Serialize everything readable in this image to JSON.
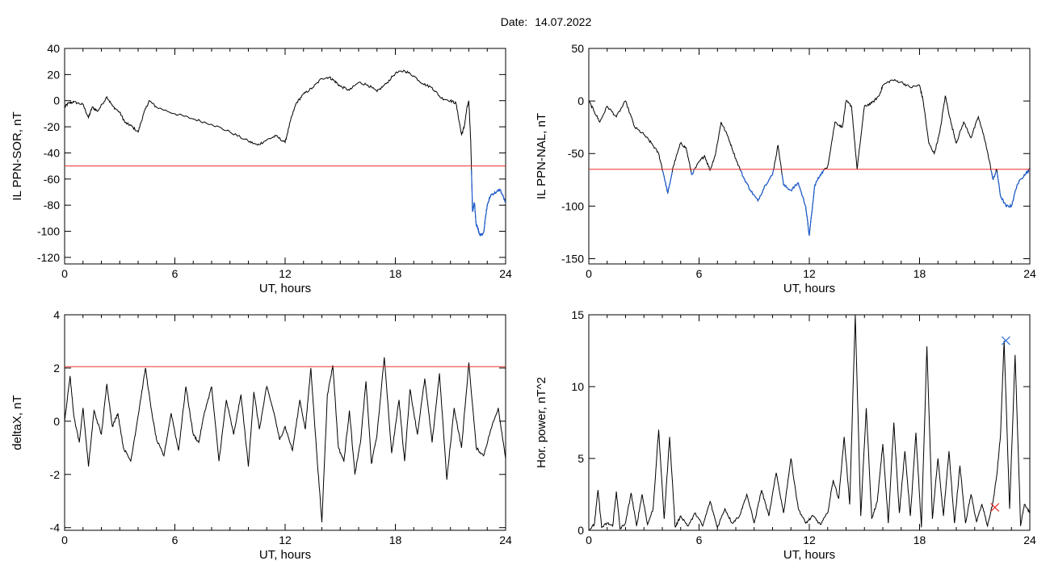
{
  "header": {
    "date_label": "Date:",
    "date_value": "14.07.2022"
  },
  "colors": {
    "trace": "#000000",
    "threshold": "#e8302a",
    "below_threshold": "#1f5fd0",
    "marker_max": "#2f6fd8",
    "marker_min": "#e8302a"
  },
  "chart_data": [
    {
      "type": "line",
      "xlabel": "UT, hours",
      "ylabel": "IL PPN-SOR, nT",
      "xlim": [
        0,
        24
      ],
      "ylim": [
        -125,
        40
      ],
      "xticks": [
        0,
        6,
        12,
        18,
        24
      ],
      "yticks": [
        40,
        20,
        0,
        -20,
        -40,
        -60,
        -80,
        -100,
        -120
      ],
      "threshold": -50,
      "series": [
        {
          "x": [
            0,
            0.2,
            0.5,
            1,
            1.3,
            1.5,
            1.8,
            2.3,
            2.6,
            3,
            3.3,
            3.6,
            4,
            4.3,
            4.6,
            5,
            6,
            7,
            8,
            9,
            10,
            10.5,
            11,
            11.5,
            12,
            12.3,
            12.6,
            13,
            13.5,
            14,
            14.4,
            14.7,
            15,
            15.5,
            16,
            16.5,
            17,
            17.5,
            18,
            18.5,
            19,
            19.5,
            20,
            20.5,
            21,
            21.3,
            21.6,
            21.75,
            21.9,
            22,
            22.1,
            22.2,
            22.3,
            22.4,
            22.5,
            22.6,
            22.8,
            23,
            23.2,
            23.5,
            23.7,
            24
          ],
          "y": [
            -5,
            -2,
            -1,
            -3,
            -13,
            -5,
            -8,
            3,
            -4,
            -9,
            -17,
            -19,
            -24,
            -10,
            0,
            -5,
            -10,
            -14,
            -18,
            -24,
            -31,
            -34,
            -30,
            -27,
            -32,
            -15,
            -2,
            5,
            10,
            17,
            18,
            15,
            11,
            8,
            14,
            12,
            7,
            13,
            21,
            23,
            19,
            13,
            10,
            2,
            0,
            -2,
            -26,
            -20,
            -5,
            -1,
            -30,
            -85,
            -78,
            -95,
            -98,
            -103,
            -101,
            -80,
            -72,
            -70,
            -68,
            -78
          ]
        }
      ]
    },
    {
      "type": "line",
      "xlabel": "UT, hours",
      "ylabel": "IL PPN-NAL, nT",
      "xlim": [
        0,
        24
      ],
      "ylim": [
        -155,
        50
      ],
      "xticks": [
        0,
        6,
        12,
        18,
        24
      ],
      "yticks": [
        50,
        0,
        -50,
        -100,
        -150
      ],
      "threshold": -65,
      "series": [
        {
          "x": [
            0,
            0.3,
            0.6,
            1,
            1.5,
            2,
            2.5,
            3,
            3.4,
            3.8,
            4.1,
            4.3,
            4.6,
            5,
            5.3,
            5.6,
            6,
            6.3,
            6.6,
            6.9,
            7.2,
            7.6,
            8,
            8.4,
            8.8,
            9.2,
            9.6,
            10,
            10.3,
            10.6,
            11,
            11.4,
            11.8,
            12,
            12.3,
            12.6,
            13,
            13.4,
            13.8,
            14,
            14.3,
            14.6,
            15,
            15.4,
            15.8,
            16,
            16.5,
            17,
            17.5,
            18,
            18.2,
            18.5,
            18.8,
            19.1,
            19.4,
            19.7,
            20,
            20.4,
            20.8,
            21.2,
            21.6,
            22,
            22.2,
            22.4,
            22.7,
            23,
            23.3,
            23.7,
            24
          ],
          "y": [
            0,
            -10,
            -20,
            -5,
            -15,
            0,
            -25,
            -32,
            -40,
            -50,
            -72,
            -88,
            -62,
            -40,
            -45,
            -70,
            -58,
            -52,
            -66,
            -50,
            -20,
            -35,
            -55,
            -72,
            -85,
            -95,
            -80,
            -70,
            -42,
            -80,
            -85,
            -78,
            -100,
            -128,
            -80,
            -70,
            -62,
            -20,
            -25,
            0,
            -5,
            -65,
            -5,
            -2,
            5,
            15,
            20,
            18,
            13,
            15,
            0,
            -40,
            -50,
            -30,
            5,
            -20,
            -40,
            -20,
            -35,
            -15,
            -40,
            -75,
            -65,
            -90,
            -100,
            -100,
            -80,
            -70,
            -65
          ]
        }
      ]
    },
    {
      "type": "line",
      "xlabel": "UT, hours",
      "ylabel": "deltaX, nT",
      "xlim": [
        0,
        24
      ],
      "ylim": [
        -4.1,
        4.0
      ],
      "xticks": [
        0,
        6,
        12,
        18,
        24
      ],
      "yticks": [
        4,
        2,
        0,
        -2,
        -4
      ],
      "threshold": 2.05,
      "series": [
        {
          "x": [
            0,
            0.3,
            0.5,
            0.8,
            1,
            1.3,
            1.6,
            2,
            2.3,
            2.6,
            2.9,
            3.2,
            3.6,
            4,
            4.4,
            4.7,
            5,
            5.4,
            5.8,
            6.2,
            6.6,
            7,
            7.3,
            7.6,
            8,
            8.4,
            8.8,
            9.2,
            9.6,
            10,
            10.3,
            10.6,
            11,
            11.4,
            11.7,
            12,
            12.4,
            12.8,
            13.1,
            13.4,
            13.7,
            14,
            14.3,
            14.6,
            14.9,
            15.2,
            15.5,
            15.8,
            16.1,
            16.4,
            16.7,
            17,
            17.4,
            17.8,
            18.2,
            18.5,
            18.8,
            19.2,
            19.6,
            20,
            20.4,
            20.8,
            21.2,
            21.6,
            22,
            22.4,
            22.8,
            23.2,
            23.6,
            24
          ],
          "y": [
            0,
            1.7,
            0.2,
            -0.8,
            0.5,
            -1.7,
            0.4,
            -0.5,
            1.4,
            -0.2,
            0.3,
            -1,
            -1.5,
            0.2,
            2,
            0.5,
            -0.7,
            -1.3,
            0.3,
            -1.1,
            1.3,
            -0.5,
            -0.8,
            0.3,
            1.3,
            -1.5,
            0.8,
            -0.5,
            1,
            -1.7,
            1.1,
            -0.3,
            1.3,
            0.3,
            -0.7,
            -0.2,
            -1.1,
            0.8,
            -0.3,
            2,
            -1,
            -3.8,
            1,
            2.1,
            -1,
            -1.5,
            0.4,
            -2,
            -0.8,
            1.5,
            -1.6,
            -0.5,
            2.4,
            -1.2,
            0.8,
            -1.5,
            1.2,
            -0.5,
            1.6,
            -0.8,
            1.8,
            -2.2,
            0.5,
            -1,
            2.2,
            -1,
            -1.3,
            -0.3,
            0.5,
            -1.4
          ]
        }
      ]
    },
    {
      "type": "line",
      "xlabel": "UT, hours",
      "ylabel": "Hor. power, nT^2",
      "xlim": [
        0,
        24
      ],
      "ylim": [
        0,
        15
      ],
      "xticks": [
        0,
        6,
        12,
        18,
        24
      ],
      "yticks": [
        15,
        10,
        5,
        0
      ],
      "series": [
        {
          "x": [
            0,
            0.3,
            0.5,
            0.7,
            1,
            1.3,
            1.5,
            1.7,
            2,
            2.3,
            2.6,
            2.9,
            3.2,
            3.5,
            3.8,
            4.1,
            4.4,
            4.7,
            5,
            5.4,
            5.8,
            6.2,
            6.6,
            7,
            7.4,
            7.8,
            8.2,
            8.6,
            9,
            9.4,
            9.8,
            10.2,
            10.6,
            11,
            11.4,
            11.8,
            12.2,
            12.6,
            13,
            13.3,
            13.6,
            13.9,
            14.2,
            14.5,
            14.8,
            15.1,
            15.4,
            15.7,
            16,
            16.3,
            16.6,
            16.9,
            17.2,
            17.5,
            17.8,
            18.1,
            18.4,
            18.7,
            19,
            19.3,
            19.6,
            19.9,
            20.2,
            20.5,
            20.8,
            21.1,
            21.4,
            21.7,
            22,
            22.2,
            22.4,
            22.6,
            22.9,
            23.2,
            23.5,
            23.7,
            24
          ],
          "y": [
            0,
            0.4,
            2.8,
            0.2,
            0.5,
            0.3,
            2.7,
            0.1,
            0.5,
            2.6,
            0.3,
            2.5,
            0.4,
            1.5,
            7,
            0.8,
            6.5,
            0.2,
            1,
            0.3,
            1.2,
            0.3,
            2,
            0.2,
            1.5,
            0.5,
            1,
            2.5,
            0.5,
            2.8,
            1,
            4,
            1.2,
            5,
            1.5,
            0.5,
            1,
            0.4,
            1.2,
            3.5,
            2.2,
            6.5,
            1.8,
            15,
            1,
            8.5,
            0.8,
            2,
            6,
            0.5,
            7.5,
            1.2,
            5.5,
            1,
            6.8,
            0.2,
            12.8,
            0.8,
            5,
            1,
            5.5,
            0.5,
            4.5,
            0.5,
            2.5,
            0.6,
            1.8,
            0.3,
            2,
            3.8,
            6.5,
            13.2,
            1.5,
            12.2,
            0.3,
            1.8,
            1.2
          ]
        }
      ],
      "markers": [
        {
          "x": 22.1,
          "y": 1.6,
          "symbol": "x",
          "color": "#e8302a"
        },
        {
          "x": 22.7,
          "y": 13.2,
          "symbol": "x",
          "color": "#2f6fd8"
        }
      ]
    }
  ]
}
